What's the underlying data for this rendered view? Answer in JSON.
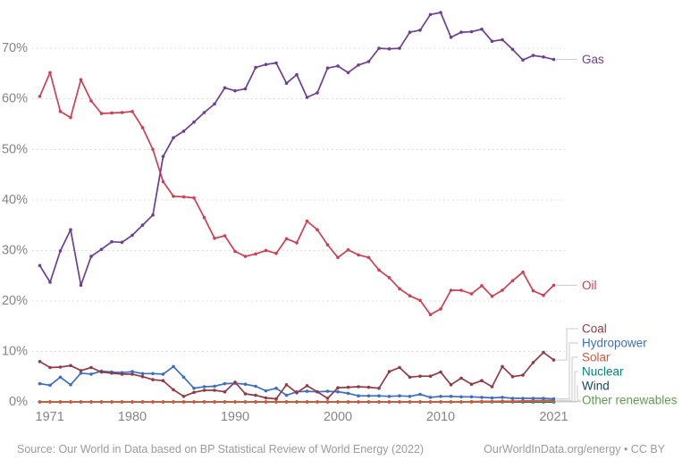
{
  "chart_data": {
    "type": "line",
    "x_start_year": 1971,
    "x": [
      1971,
      1972,
      1973,
      1974,
      1975,
      1976,
      1977,
      1978,
      1979,
      1980,
      1981,
      1982,
      1983,
      1984,
      1985,
      1986,
      1987,
      1988,
      1989,
      1990,
      1991,
      1992,
      1993,
      1994,
      1995,
      1996,
      1997,
      1998,
      1999,
      2000,
      2001,
      2002,
      2003,
      2004,
      2005,
      2006,
      2007,
      2008,
      2009,
      2010,
      2011,
      2012,
      2013,
      2014,
      2015,
      2016,
      2017,
      2018,
      2019,
      2020,
      2021
    ],
    "x_ticks": [
      1971,
      1980,
      1990,
      2000,
      2010,
      2021
    ],
    "y_ticks": [
      0,
      10,
      20,
      30,
      40,
      50,
      60,
      70
    ],
    "y_tick_suffix": "%",
    "ylim": [
      0,
      77.5
    ],
    "grid": "horizontal-dashed",
    "legend_position": "right-end-labels",
    "series": [
      {
        "name": "Nuclear",
        "color": "#00847c",
        "values": [
          0,
          0,
          0,
          0,
          0,
          0,
          0,
          0,
          0,
          0,
          0,
          0,
          0,
          0,
          0,
          0,
          0,
          0,
          0,
          0,
          0,
          0,
          0,
          0,
          0,
          0,
          0,
          0,
          0,
          0,
          0,
          0,
          0,
          0,
          0,
          0,
          0,
          0,
          0,
          0,
          0,
          0,
          0,
          0,
          0,
          0,
          0,
          0,
          0,
          0,
          0
        ]
      },
      {
        "name": "Wind",
        "color": "#1d4266",
        "values": [
          0,
          0,
          0,
          0,
          0,
          0,
          0,
          0,
          0,
          0,
          0,
          0,
          0,
          0,
          0,
          0,
          0,
          0,
          0,
          0,
          0,
          0,
          0,
          0,
          0,
          0,
          0,
          0,
          0,
          0,
          0,
          0,
          0,
          0,
          0,
          0,
          0,
          0,
          0,
          0,
          0,
          0,
          0,
          0,
          0,
          0,
          0,
          0,
          0,
          0,
          0
        ]
      },
      {
        "name": "Other renewables",
        "color": "#629a52",
        "values": [
          0,
          0,
          0,
          0,
          0,
          0,
          0,
          0,
          0,
          0,
          0,
          0,
          0,
          0,
          0,
          0,
          0,
          0,
          0,
          0,
          0,
          0,
          0,
          0,
          0,
          0,
          0,
          0,
          0,
          0,
          0,
          0,
          0,
          0,
          0,
          0,
          0,
          0,
          0,
          0,
          0,
          0,
          0,
          0,
          0,
          0.05,
          0.05,
          0.1,
          0.1,
          0.1,
          0.1
        ]
      },
      {
        "name": "Solar",
        "color": "#d6563c",
        "values": [
          0,
          0,
          0,
          0,
          0,
          0,
          0,
          0,
          0,
          0,
          0,
          0,
          0,
          0,
          0,
          0,
          0,
          0,
          0,
          0,
          0,
          0,
          0,
          0,
          0,
          0,
          0,
          0,
          0,
          0,
          0,
          0,
          0,
          0,
          0,
          0,
          0,
          0,
          0,
          0,
          0,
          0,
          0.05,
          0.1,
          0.1,
          0.15,
          0.15,
          0.2,
          0.25,
          0.3,
          0.3
        ]
      },
      {
        "name": "Hydropower",
        "color": "#3c6fc2",
        "values": [
          3.6,
          3.3,
          4.9,
          3.4,
          5.7,
          5.5,
          6.1,
          5.9,
          5.8,
          6.0,
          5.6,
          5.6,
          5.5,
          7.0,
          4.9,
          2.7,
          3.0,
          3.1,
          3.6,
          3.7,
          3.5,
          3.1,
          2.2,
          2.7,
          1.3,
          2.0,
          2.1,
          2.0,
          2.1,
          2.0,
          1.7,
          1.2,
          1.2,
          1.2,
          1.1,
          1.2,
          1.1,
          1.5,
          0.9,
          1.1,
          1.1,
          1.0,
          1.0,
          0.9,
          0.8,
          0.9,
          0.7,
          0.7,
          0.7,
          0.7,
          0.6
        ]
      },
      {
        "name": "Coal",
        "color": "#923a44",
        "values": [
          8.0,
          6.8,
          6.9,
          7.2,
          6.2,
          6.8,
          5.9,
          5.7,
          5.5,
          5.5,
          5.0,
          4.4,
          4.2,
          2.4,
          1.1,
          1.9,
          2.3,
          2.3,
          2.0,
          3.9,
          1.6,
          1.3,
          0.8,
          0.6,
          3.4,
          1.8,
          3.2,
          2.0,
          0.7,
          2.8,
          2.9,
          3.0,
          2.9,
          2.7,
          6.0,
          6.8,
          4.9,
          5.1,
          5.1,
          5.9,
          3.4,
          4.7,
          3.5,
          4.2,
          3.0,
          7.0,
          5.0,
          5.3,
          7.8,
          9.8,
          8.3
        ]
      },
      {
        "name": "Oil",
        "color": "#d33d50",
        "values": [
          60.5,
          65.2,
          57.5,
          56.3,
          63.8,
          59.6,
          57.1,
          57.2,
          57.3,
          57.5,
          54.3,
          50.0,
          43.6,
          40.7,
          40.6,
          40.4,
          36.5,
          32.4,
          32.9,
          29.8,
          28.8,
          29.3,
          30.0,
          29.4,
          32.3,
          31.5,
          35.8,
          34.1,
          31.1,
          28.6,
          30.1,
          29.1,
          28.6,
          26.1,
          24.6,
          22.4,
          21.0,
          20.1,
          17.3,
          18.4,
          22.1,
          22.1,
          21.4,
          23.0,
          20.9,
          22.1,
          24.0,
          25.7,
          22.0,
          21.1,
          23.1
        ]
      },
      {
        "name": "Gas",
        "color": "#6d3e91",
        "values": [
          27.0,
          23.7,
          29.9,
          34.1,
          23.1,
          28.8,
          30.2,
          31.7,
          31.6,
          33.0,
          35.0,
          37.0,
          48.6,
          52.3,
          53.6,
          55.4,
          57.3,
          59.0,
          62.2,
          61.6,
          62.0,
          66.2,
          66.8,
          67.1,
          63.1,
          64.8,
          60.3,
          61.2,
          66.1,
          66.5,
          65.2,
          66.7,
          67.4,
          70.0,
          69.9,
          70.0,
          73.2,
          73.6,
          76.7,
          77.1,
          72.2,
          73.2,
          73.3,
          73.8,
          71.4,
          71.7,
          69.8,
          67.7,
          68.6,
          68.3,
          67.8
        ]
      }
    ],
    "small_label_order": [
      "Coal",
      "Hydropower",
      "Solar",
      "Nuclear",
      "Wind",
      "Other renewables"
    ]
  },
  "footer": {
    "source": "Source: Our World in Data based on BP Statistical Review of World Energy (2022)",
    "credit": "OurWorldInData.org/energy • CC BY"
  }
}
